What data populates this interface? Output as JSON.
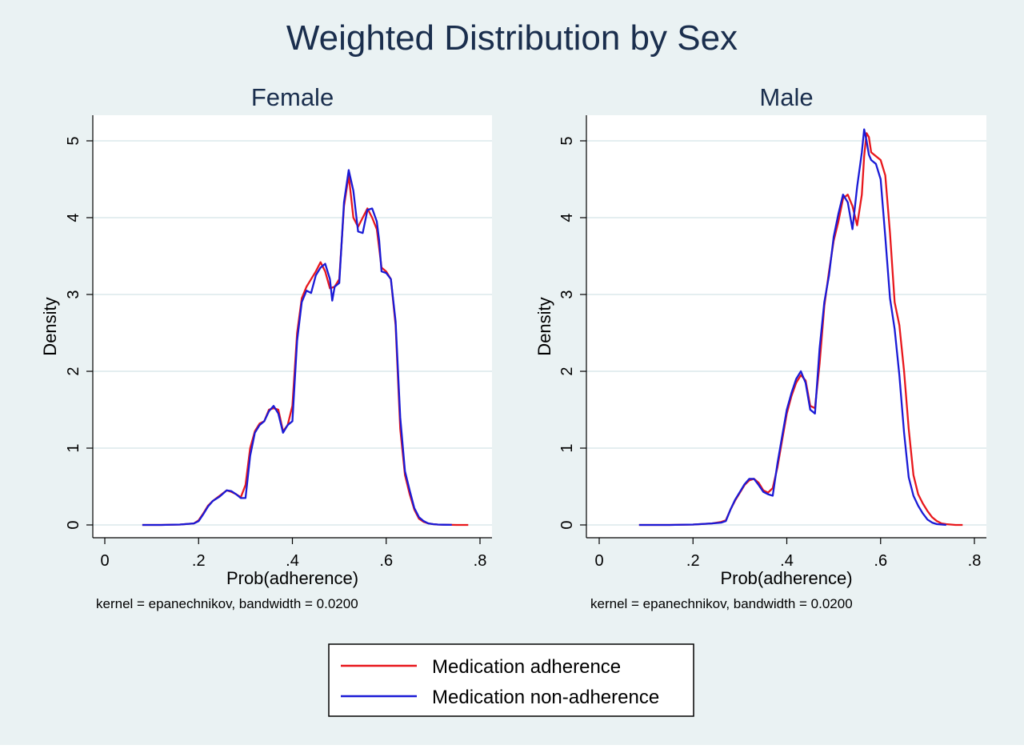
{
  "title": "Weighted Distribution by Sex",
  "legend": {
    "items": [
      {
        "label": "Medication adherence",
        "color": "#e8171c"
      },
      {
        "label": "Medication non-adherence",
        "color": "#1a1ad6"
      }
    ]
  },
  "colors": {
    "background": "#eaf2f3",
    "plot_bg": "#ffffff",
    "grid": "#dce8ec",
    "axis": "#000000",
    "title": "#1a2e4d"
  },
  "chart_data": [
    {
      "type": "line",
      "title": "Female",
      "xlabel": "Prob(adherence)",
      "ylabel": "Density",
      "note": "kernel = epanechnikov, bandwidth = 0.0200",
      "xlim": [
        0,
        0.8
      ],
      "ylim": [
        0,
        5
      ],
      "xticks": [
        {
          "v": 0,
          "label": "0"
        },
        {
          "v": 0.2,
          "label": ".2"
        },
        {
          "v": 0.4,
          "label": ".4"
        },
        {
          "v": 0.6,
          "label": ".6"
        },
        {
          "v": 0.8,
          "label": ".8"
        }
      ],
      "yticks": [
        {
          "v": 0,
          "label": "0"
        },
        {
          "v": 1,
          "label": "1"
        },
        {
          "v": 2,
          "label": "2"
        },
        {
          "v": 3,
          "label": "3"
        },
        {
          "v": 4,
          "label": "4"
        },
        {
          "v": 5,
          "label": "5"
        }
      ],
      "grid": true,
      "series": [
        {
          "name": "Medication adherence",
          "color": "#e8171c",
          "x": [
            0.08,
            0.12,
            0.16,
            0.19,
            0.2,
            0.21,
            0.22,
            0.23,
            0.245,
            0.26,
            0.27,
            0.28,
            0.29,
            0.3,
            0.31,
            0.32,
            0.33,
            0.34,
            0.35,
            0.36,
            0.37,
            0.38,
            0.39,
            0.4,
            0.41,
            0.42,
            0.43,
            0.44,
            0.45,
            0.46,
            0.47,
            0.48,
            0.49,
            0.5,
            0.51,
            0.52,
            0.53,
            0.54,
            0.55,
            0.56,
            0.57,
            0.58,
            0.585,
            0.59,
            0.6,
            0.61,
            0.62,
            0.63,
            0.64,
            0.65,
            0.66,
            0.67,
            0.68,
            0.69,
            0.7,
            0.71,
            0.72,
            0.73,
            0.74,
            0.75,
            0.775
          ],
          "y": [
            0,
            0,
            0.005,
            0.02,
            0.06,
            0.15,
            0.25,
            0.31,
            0.38,
            0.45,
            0.43,
            0.4,
            0.36,
            0.52,
            1.0,
            1.22,
            1.32,
            1.35,
            1.5,
            1.52,
            1.5,
            1.22,
            1.3,
            1.55,
            2.5,
            2.95,
            3.1,
            3.2,
            3.3,
            3.42,
            3.3,
            3.08,
            3.1,
            3.2,
            4.15,
            4.55,
            4.0,
            3.88,
            4.0,
            4.12,
            4.0,
            3.85,
            3.6,
            3.35,
            3.3,
            3.2,
            2.6,
            1.25,
            0.65,
            0.4,
            0.2,
            0.08,
            0.04,
            0.02,
            0.01,
            0.005,
            0.003,
            0.002,
            0.001,
            0,
            0
          ]
        },
        {
          "name": "Medication non-adherence",
          "color": "#1a1ad6",
          "x": [
            0.08,
            0.12,
            0.16,
            0.19,
            0.2,
            0.21,
            0.22,
            0.23,
            0.245,
            0.26,
            0.27,
            0.28,
            0.29,
            0.3,
            0.31,
            0.32,
            0.33,
            0.34,
            0.35,
            0.36,
            0.37,
            0.38,
            0.39,
            0.4,
            0.41,
            0.42,
            0.43,
            0.44,
            0.45,
            0.46,
            0.47,
            0.48,
            0.485,
            0.49,
            0.5,
            0.51,
            0.52,
            0.53,
            0.54,
            0.55,
            0.56,
            0.57,
            0.58,
            0.585,
            0.59,
            0.6,
            0.61,
            0.62,
            0.63,
            0.64,
            0.65,
            0.66,
            0.67,
            0.68,
            0.69,
            0.7,
            0.71,
            0.72,
            0.73,
            0.74
          ],
          "y": [
            0,
            0,
            0.005,
            0.02,
            0.05,
            0.14,
            0.24,
            0.31,
            0.37,
            0.45,
            0.44,
            0.4,
            0.35,
            0.35,
            0.9,
            1.2,
            1.3,
            1.35,
            1.48,
            1.55,
            1.45,
            1.2,
            1.3,
            1.35,
            2.4,
            2.9,
            3.05,
            3.02,
            3.25,
            3.35,
            3.4,
            3.2,
            2.92,
            3.1,
            3.15,
            4.2,
            4.62,
            4.35,
            3.82,
            3.8,
            4.1,
            4.12,
            3.95,
            3.7,
            3.3,
            3.28,
            3.2,
            2.65,
            1.4,
            0.7,
            0.45,
            0.22,
            0.1,
            0.05,
            0.02,
            0.01,
            0.005,
            0.003,
            0.002,
            0.001
          ]
        }
      ]
    },
    {
      "type": "line",
      "title": "Male",
      "xlabel": "Prob(adherence)",
      "ylabel": "Density",
      "note": "kernel = epanechnikov, bandwidth = 0.0200",
      "xlim": [
        0,
        0.8
      ],
      "ylim": [
        0,
        5
      ],
      "xticks": [
        {
          "v": 0,
          "label": "0"
        },
        {
          "v": 0.2,
          "label": ".2"
        },
        {
          "v": 0.4,
          "label": ".4"
        },
        {
          "v": 0.6,
          "label": ".6"
        },
        {
          "v": 0.8,
          "label": ".8"
        }
      ],
      "yticks": [
        {
          "v": 0,
          "label": "0"
        },
        {
          "v": 1,
          "label": "1"
        },
        {
          "v": 2,
          "label": "2"
        },
        {
          "v": 3,
          "label": "3"
        },
        {
          "v": 4,
          "label": "4"
        },
        {
          "v": 5,
          "label": "5"
        }
      ],
      "grid": true,
      "series": [
        {
          "name": "Medication adherence",
          "color": "#e8171c",
          "x": [
            0.085,
            0.15,
            0.2,
            0.24,
            0.26,
            0.27,
            0.28,
            0.29,
            0.3,
            0.31,
            0.32,
            0.33,
            0.34,
            0.35,
            0.36,
            0.37,
            0.38,
            0.39,
            0.4,
            0.41,
            0.42,
            0.43,
            0.44,
            0.45,
            0.46,
            0.47,
            0.48,
            0.49,
            0.5,
            0.51,
            0.52,
            0.53,
            0.54,
            0.55,
            0.56,
            0.565,
            0.57,
            0.575,
            0.58,
            0.59,
            0.6,
            0.61,
            0.62,
            0.63,
            0.64,
            0.65,
            0.66,
            0.67,
            0.68,
            0.69,
            0.7,
            0.71,
            0.72,
            0.73,
            0.74,
            0.75,
            0.76,
            0.775
          ],
          "y": [
            0,
            0,
            0.005,
            0.02,
            0.04,
            0.06,
            0.2,
            0.32,
            0.42,
            0.52,
            0.58,
            0.6,
            0.55,
            0.45,
            0.42,
            0.48,
            0.75,
            1.1,
            1.45,
            1.68,
            1.85,
            1.95,
            1.88,
            1.55,
            1.52,
            2.1,
            2.85,
            3.3,
            3.7,
            3.95,
            4.25,
            4.3,
            4.15,
            3.9,
            4.3,
            4.8,
            5.1,
            5.05,
            4.85,
            4.8,
            4.75,
            4.55,
            3.8,
            2.9,
            2.6,
            2.0,
            1.25,
            0.65,
            0.4,
            0.28,
            0.18,
            0.1,
            0.05,
            0.02,
            0.01,
            0.005,
            0,
            0
          ]
        },
        {
          "name": "Medication non-adherence",
          "color": "#1a1ad6",
          "x": [
            0.085,
            0.15,
            0.2,
            0.24,
            0.26,
            0.27,
            0.28,
            0.29,
            0.3,
            0.31,
            0.32,
            0.33,
            0.34,
            0.35,
            0.36,
            0.37,
            0.38,
            0.39,
            0.4,
            0.41,
            0.42,
            0.43,
            0.44,
            0.45,
            0.46,
            0.47,
            0.48,
            0.49,
            0.5,
            0.51,
            0.52,
            0.53,
            0.54,
            0.55,
            0.56,
            0.565,
            0.57,
            0.575,
            0.58,
            0.59,
            0.6,
            0.61,
            0.62,
            0.63,
            0.64,
            0.65,
            0.66,
            0.67,
            0.68,
            0.69,
            0.7,
            0.71,
            0.72,
            0.73,
            0.74
          ],
          "y": [
            0,
            0,
            0.005,
            0.02,
            0.03,
            0.05,
            0.2,
            0.33,
            0.43,
            0.53,
            0.6,
            0.6,
            0.52,
            0.43,
            0.4,
            0.38,
            0.8,
            1.15,
            1.5,
            1.72,
            1.9,
            2.0,
            1.85,
            1.5,
            1.45,
            2.3,
            2.9,
            3.25,
            3.75,
            4.05,
            4.3,
            4.2,
            3.85,
            4.4,
            4.85,
            5.15,
            5.0,
            4.82,
            4.75,
            4.7,
            4.5,
            3.75,
            2.95,
            2.55,
            1.95,
            1.2,
            0.62,
            0.38,
            0.25,
            0.15,
            0.07,
            0.03,
            0.01,
            0.005,
            0
          ]
        }
      ]
    }
  ]
}
